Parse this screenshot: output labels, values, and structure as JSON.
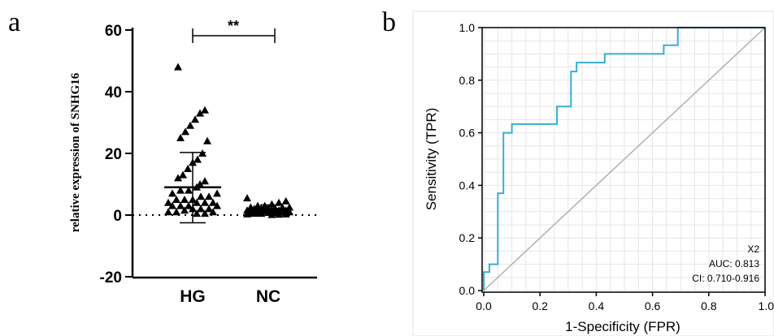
{
  "chart_data": [
    {
      "panel_label": "a",
      "type": "scatter",
      "ylabel": "relative expression of SNHG16",
      "ylim": [
        -20,
        60
      ],
      "yticks": [
        "60",
        "40",
        "20",
        "0",
        "-20"
      ],
      "categories": [
        "HG",
        "NC"
      ],
      "significance": "**",
      "reference_line_y": 0,
      "groups": [
        {
          "name": "HG",
          "mean": 9,
          "sd_upper": 20.3,
          "sd_lower": -2.5,
          "points": [
            48,
            34,
            33,
            31,
            29,
            27,
            25,
            24,
            20,
            18,
            17,
            15,
            13,
            12,
            11,
            10,
            9,
            8,
            8,
            7,
            7,
            6,
            6,
            5,
            5,
            5,
            4,
            4,
            4,
            4,
            3,
            3,
            3,
            3,
            2,
            2,
            2,
            1.5,
            1,
            1,
            1,
            0.5,
            0.5
          ]
        },
        {
          "name": "NC",
          "mean": 2,
          "sd_upper": 3.3,
          "sd_lower": 0.6,
          "points": [
            5.5,
            4.5,
            4,
            3.5,
            3,
            3,
            2.5,
            2.5,
            2.5,
            2,
            2,
            2,
            2,
            1.5,
            1.5,
            1.5,
            1.5,
            1.2,
            1,
            1,
            1,
            1,
            0.8,
            0.8,
            0.5,
            0.5,
            0.3,
            0.3,
            0.2,
            0.1
          ]
        }
      ]
    },
    {
      "panel_label": "b",
      "type": "line",
      "xlabel": "1-Specificity (FPR)",
      "ylabel": "Sensitivity (TPR)",
      "xlim": [
        0,
        1
      ],
      "ylim": [
        0,
        1
      ],
      "xticks": [
        "0.0",
        "0.2",
        "0.4",
        "0.6",
        "0.8",
        "1.0"
      ],
      "yticks": [
        "0.0",
        "0.2",
        "0.4",
        "0.6",
        "0.8",
        "1.0"
      ],
      "grid": true,
      "line_color": "#3aaed0",
      "diagonal_color": "#b0b0b0",
      "series": [
        {
          "x": [
            0,
            0,
            0.02,
            0.02,
            0.05,
            0.05,
            0.07,
            0.07,
            0.1,
            0.1,
            0.26,
            0.26,
            0.31,
            0.31,
            0.33,
            0.33,
            0.43,
            0.43,
            0.64,
            0.64,
            0.69,
            0.69,
            1.0
          ],
          "y": [
            0,
            0.07,
            0.07,
            0.1,
            0.1,
            0.37,
            0.37,
            0.6,
            0.6,
            0.633,
            0.633,
            0.7,
            0.7,
            0.833,
            0.833,
            0.867,
            0.867,
            0.9,
            0.9,
            0.933,
            0.933,
            1.0,
            1.0
          ]
        }
      ],
      "annotation": {
        "series_label": "X2",
        "auc": "AUC: 0.813",
        "ci": "CI: 0.710-0.916"
      }
    }
  ]
}
